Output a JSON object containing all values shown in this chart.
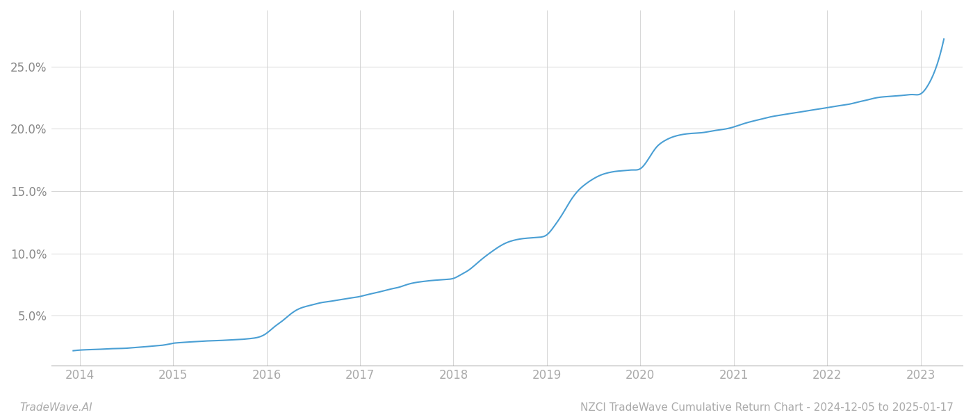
{
  "title": "NZCI TradeWave Cumulative Return Chart - 2024-12-05 to 2025-01-17",
  "watermark": "TradeWave.AI",
  "line_color": "#4a9fd4",
  "background_color": "#ffffff",
  "grid_color": "#d0d0d0",
  "x_years": [
    2014,
    2015,
    2016,
    2017,
    2018,
    2019,
    2020,
    2021,
    2022,
    2023
  ],
  "y_ticks": [
    5.0,
    10.0,
    15.0,
    20.0,
    25.0
  ],
  "xlim": [
    2013.7,
    2023.45
  ],
  "ylim": [
    1.0,
    29.5
  ],
  "data_x": [
    2013.93,
    2014.0,
    2014.08,
    2014.17,
    2014.25,
    2014.33,
    2014.42,
    2014.5,
    2014.58,
    2014.67,
    2014.75,
    2014.83,
    2014.92,
    2015.0,
    2015.08,
    2015.17,
    2015.25,
    2015.33,
    2015.42,
    2015.5,
    2015.58,
    2015.67,
    2015.75,
    2015.83,
    2015.92,
    2016.0,
    2016.08,
    2016.17,
    2016.25,
    2016.33,
    2016.42,
    2016.5,
    2016.58,
    2016.67,
    2016.75,
    2016.83,
    2016.92,
    2017.0,
    2017.08,
    2017.17,
    2017.25,
    2017.33,
    2017.42,
    2017.5,
    2017.58,
    2017.67,
    2017.75,
    2017.83,
    2017.92,
    2018.0,
    2018.08,
    2018.17,
    2018.25,
    2018.33,
    2018.42,
    2018.5,
    2018.58,
    2018.67,
    2018.75,
    2018.83,
    2018.92,
    2019.0,
    2019.08,
    2019.17,
    2019.25,
    2019.33,
    2019.42,
    2019.5,
    2019.58,
    2019.67,
    2019.75,
    2019.83,
    2019.92,
    2020.0,
    2020.08,
    2020.17,
    2020.25,
    2020.33,
    2020.42,
    2020.5,
    2020.58,
    2020.67,
    2020.75,
    2020.83,
    2020.92,
    2021.0,
    2021.08,
    2021.17,
    2021.25,
    2021.33,
    2021.42,
    2021.5,
    2021.58,
    2021.67,
    2021.75,
    2021.83,
    2021.92,
    2022.0,
    2022.08,
    2022.17,
    2022.25,
    2022.33,
    2022.42,
    2022.5,
    2022.58,
    2022.67,
    2022.75,
    2022.83,
    2022.92,
    2023.0,
    2023.08,
    2023.17,
    2023.25
  ],
  "data_y": [
    2.2,
    2.25,
    2.28,
    2.3,
    2.33,
    2.36,
    2.38,
    2.4,
    2.45,
    2.5,
    2.55,
    2.6,
    2.68,
    2.8,
    2.85,
    2.9,
    2.93,
    2.97,
    3.0,
    3.02,
    3.05,
    3.08,
    3.12,
    3.18,
    3.3,
    3.6,
    4.1,
    4.6,
    5.1,
    5.5,
    5.75,
    5.9,
    6.05,
    6.15,
    6.25,
    6.35,
    6.45,
    6.55,
    6.7,
    6.85,
    7.0,
    7.15,
    7.3,
    7.5,
    7.65,
    7.75,
    7.82,
    7.87,
    7.92,
    8.0,
    8.3,
    8.7,
    9.2,
    9.7,
    10.2,
    10.6,
    10.9,
    11.1,
    11.2,
    11.25,
    11.3,
    11.5,
    12.2,
    13.2,
    14.2,
    15.0,
    15.6,
    16.0,
    16.3,
    16.5,
    16.6,
    16.65,
    16.7,
    16.8,
    17.5,
    18.5,
    19.0,
    19.3,
    19.5,
    19.6,
    19.65,
    19.7,
    19.8,
    19.9,
    20.0,
    20.15,
    20.35,
    20.55,
    20.7,
    20.85,
    21.0,
    21.1,
    21.2,
    21.3,
    21.4,
    21.5,
    21.6,
    21.7,
    21.8,
    21.9,
    22.0,
    22.15,
    22.3,
    22.45,
    22.55,
    22.6,
    22.65,
    22.7,
    22.75,
    22.8,
    23.5,
    25.0,
    27.2
  ]
}
